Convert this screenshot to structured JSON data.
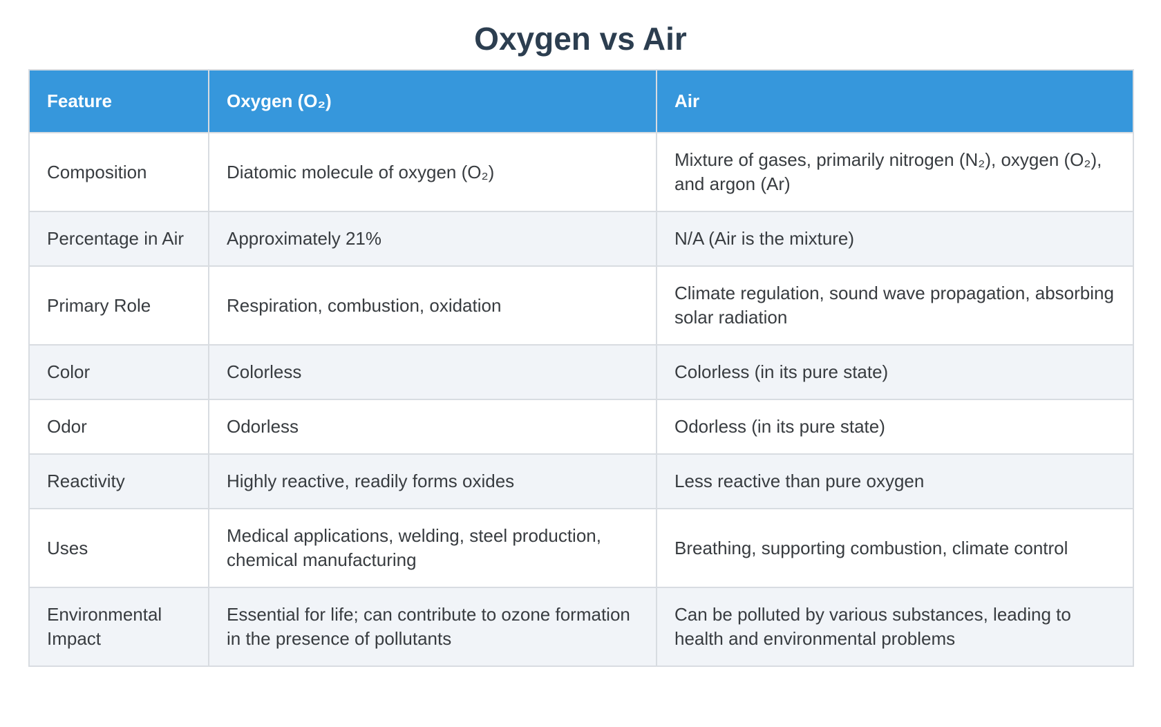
{
  "title": "Oxygen vs Air",
  "table": {
    "headers": [
      "Feature",
      "Oxygen (O₂)",
      "Air"
    ],
    "rows": [
      {
        "feature": "Composition",
        "oxygen": "Diatomic molecule of oxygen (O₂)",
        "air": "Mixture of gases, primarily nitrogen (N₂), oxygen (O₂), and argon (Ar)"
      },
      {
        "feature": "Percentage in Air",
        "oxygen": "Approximately 21%",
        "air": "N/A (Air is the mixture)"
      },
      {
        "feature": "Primary Role",
        "oxygen": "Respiration, combustion, oxidation",
        "air": "Climate regulation, sound wave propagation, absorbing solar radiation"
      },
      {
        "feature": "Color",
        "oxygen": "Colorless",
        "air": "Colorless (in its pure state)"
      },
      {
        "feature": "Odor",
        "oxygen": "Odorless",
        "air": "Odorless (in its pure state)"
      },
      {
        "feature": "Reactivity",
        "oxygen": "Highly reactive, readily forms oxides",
        "air": "Less reactive than pure oxygen"
      },
      {
        "feature": "Uses",
        "oxygen": "Medical applications, welding, steel production, chemical manufacturing",
        "air": "Breathing, supporting combustion, climate control"
      },
      {
        "feature": "Environmental Impact",
        "oxygen": "Essential for life; can contribute to ozone formation in the presence of pollutants",
        "air": "Can be polluted by various substances, leading to health and environmental problems"
      }
    ]
  },
  "colors": {
    "header_bg": "#3697dc",
    "header_text": "#ffffff",
    "title_text": "#2c3e50",
    "body_text": "#383c40",
    "row_bg": "#ffffff",
    "row_alt_bg": "#f1f4f8",
    "border": "#d8dce1"
  }
}
